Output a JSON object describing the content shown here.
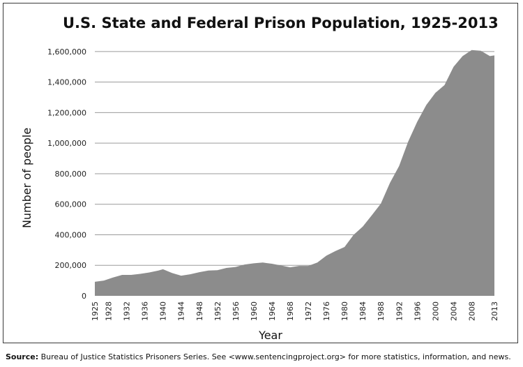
{
  "chart_data": {
    "type": "area",
    "title": "U.S. State and Federal Prison Population, 1925-2013",
    "xlabel": "Year",
    "ylabel": "Number of people",
    "xlim": [
      1925,
      2013
    ],
    "ylim": [
      0,
      1700000
    ],
    "x_tick_labels": [
      "1925",
      "1928",
      "1932",
      "1936",
      "1940",
      "1944",
      "1948",
      "1952",
      "1956",
      "1960",
      "1964",
      "1968",
      "1972",
      "1976",
      "1980",
      "1984",
      "1988",
      "1992",
      "1996",
      "2000",
      "2004",
      "2008",
      "2013"
    ],
    "y_tick_labels": [
      "0",
      "200,000",
      "400,000",
      "600,000",
      "800,000",
      "1,000,000",
      "1,200,000",
      "1,400,000",
      "1,600,000"
    ],
    "y_tick_values": [
      0,
      200000,
      400000,
      600000,
      800000,
      1000000,
      1200000,
      1400000,
      1600000
    ],
    "grid": "horizontal",
    "fill_color": "#8c8c8c",
    "x": [
      1925,
      1927,
      1929,
      1931,
      1933,
      1935,
      1937,
      1939,
      1940,
      1942,
      1944,
      1946,
      1948,
      1950,
      1952,
      1954,
      1956,
      1958,
      1960,
      1962,
      1964,
      1966,
      1968,
      1970,
      1972,
      1974,
      1976,
      1978,
      1980,
      1982,
      1984,
      1986,
      1988,
      1990,
      1992,
      1994,
      1996,
      1998,
      2000,
      2002,
      2004,
      2006,
      2008,
      2010,
      2012,
      2013
    ],
    "values": [
      92000,
      100000,
      120000,
      137000,
      137000,
      144000,
      153000,
      166000,
      174000,
      150000,
      132000,
      141000,
      155000,
      166000,
      168000,
      183000,
      189000,
      205000,
      213000,
      218000,
      210000,
      199000,
      187000,
      196000,
      196000,
      218000,
      263000,
      294000,
      320000,
      400000,
      454000,
      528000,
      604000,
      740000,
      850000,
      1010000,
      1140000,
      1250000,
      1330000,
      1380000,
      1500000,
      1570000,
      1610000,
      1605000,
      1570000,
      1575000
    ]
  },
  "source": {
    "label": "Source:",
    "text": "Bureau of Justice Statistics Prisoners Series. See <www.sentencingproject.org> for more statistics, information, and news."
  }
}
